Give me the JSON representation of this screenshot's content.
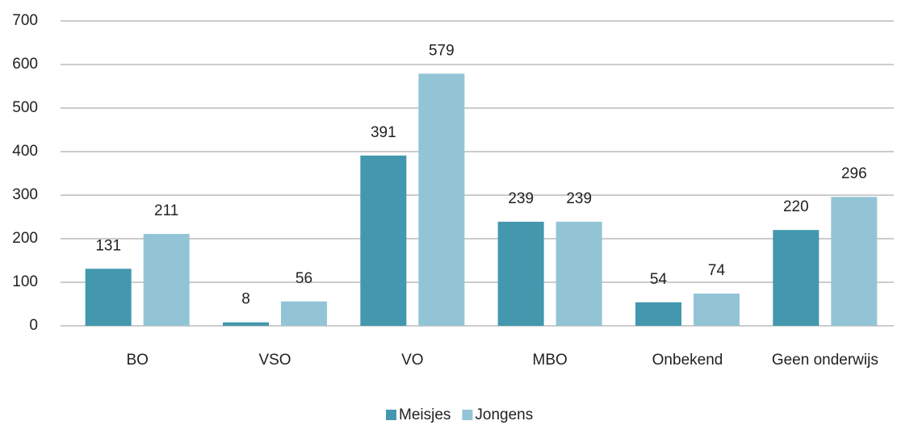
{
  "chart_data": {
    "type": "bar",
    "categories": [
      "BO",
      "VSO",
      "VO",
      "MBO",
      "Onbekend",
      "Geen onderwijs"
    ],
    "series": [
      {
        "name": "Meisjes",
        "color": "#4398ae",
        "values": [
          131,
          8,
          391,
          239,
          54,
          220
        ]
      },
      {
        "name": "Jongens",
        "color": "#93c4d6",
        "values": [
          211,
          56,
          579,
          239,
          74,
          296
        ]
      }
    ],
    "ylim": [
      0,
      700
    ],
    "yticks": [
      0,
      100,
      200,
      300,
      400,
      500,
      600,
      700
    ],
    "grid": true,
    "legend": "bottom"
  }
}
